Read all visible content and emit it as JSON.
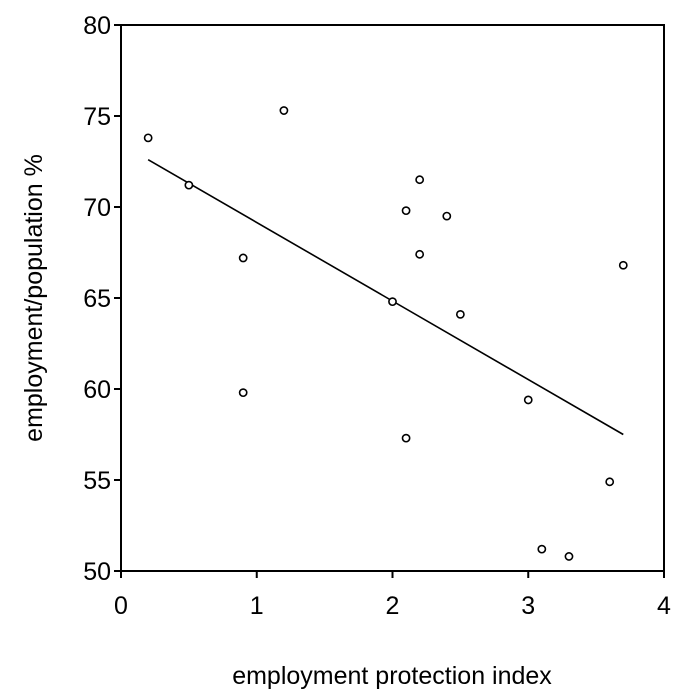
{
  "chart_data": {
    "type": "scatter",
    "title": "",
    "xlabel": "employment protection index",
    "ylabel": "employment/population %",
    "xlim": [
      0,
      4
    ],
    "ylim": [
      50,
      80
    ],
    "x_ticks": [
      0,
      1,
      2,
      3,
      4
    ],
    "y_ticks": [
      50,
      55,
      60,
      65,
      70,
      75,
      80
    ],
    "grid": false,
    "legend": "none",
    "marker": "open-circle",
    "colors": {
      "points": "#000000",
      "line": "#000000",
      "frame": "#000000"
    },
    "points": [
      {
        "x": 0.2,
        "y": 73.8
      },
      {
        "x": 0.5,
        "y": 71.2
      },
      {
        "x": 0.9,
        "y": 67.2
      },
      {
        "x": 0.9,
        "y": 59.8
      },
      {
        "x": 1.2,
        "y": 75.3
      },
      {
        "x": 2.0,
        "y": 64.8
      },
      {
        "x": 2.1,
        "y": 69.8
      },
      {
        "x": 2.1,
        "y": 57.3
      },
      {
        "x": 2.2,
        "y": 71.5
      },
      {
        "x": 2.2,
        "y": 67.4
      },
      {
        "x": 2.4,
        "y": 69.5
      },
      {
        "x": 2.5,
        "y": 64.1
      },
      {
        "x": 3.0,
        "y": 59.4
      },
      {
        "x": 3.1,
        "y": 51.2
      },
      {
        "x": 3.3,
        "y": 50.8
      },
      {
        "x": 3.6,
        "y": 54.9
      },
      {
        "x": 3.7,
        "y": 66.8
      }
    ],
    "trend_line": {
      "type": "linear-fit",
      "start": {
        "x": 0.2,
        "y": 72.6
      },
      "end": {
        "x": 3.7,
        "y": 57.5
      }
    }
  }
}
